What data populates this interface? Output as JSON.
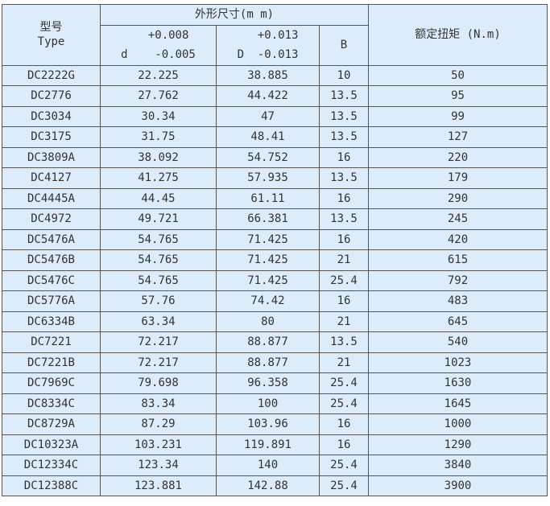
{
  "header": {
    "type_cn": "型号",
    "type_en": "Type",
    "dims": "外形尺寸(m m)",
    "d_upper": "+0.008",
    "d_label": "d",
    "d_lower": "-0.005",
    "D_upper": "+0.013",
    "D_label": "D",
    "D_lower": "-0.013",
    "b": "B",
    "torque": "额定扭矩 (N.m)"
  },
  "rows": [
    [
      "DC2222G",
      "22.225",
      "38.885",
      "10",
      "50"
    ],
    [
      "DC2776",
      "27.762",
      "44.422",
      "13.5",
      "95"
    ],
    [
      "DC3034",
      "30.34",
      "47",
      "13.5",
      "99"
    ],
    [
      "DC3175",
      "31.75",
      "48.41",
      "13.5",
      "127"
    ],
    [
      "DC3809A",
      "38.092",
      "54.752",
      "16",
      "220"
    ],
    [
      "DC4127",
      "41.275",
      "57.935",
      "13.5",
      "179"
    ],
    [
      "DC4445A",
      "44.45",
      "61.11",
      "16",
      "290"
    ],
    [
      "DC4972",
      "49.721",
      "66.381",
      "13.5",
      "245"
    ],
    [
      "DC5476A",
      "54.765",
      "71.425",
      "16",
      "420"
    ],
    [
      "DC5476B",
      "54.765",
      "71.425",
      "21",
      "615"
    ],
    [
      "DC5476C",
      "54.765",
      "71.425",
      "25.4",
      "792"
    ],
    [
      "DC5776A",
      "57.76",
      "74.42",
      "16",
      "483"
    ],
    [
      "DC6334B",
      "63.34",
      "80",
      "21",
      "645"
    ],
    [
      "DC7221",
      "72.217",
      "88.877",
      "13.5",
      "540"
    ],
    [
      "DC7221B",
      "72.217",
      "88.877",
      "21",
      "1023"
    ],
    [
      "DC7969C",
      "79.698",
      "96.358",
      "25.4",
      "1630"
    ],
    [
      "DC8334C",
      "83.34",
      "100",
      "25.4",
      "1645"
    ],
    [
      "DC8729A",
      "87.29",
      "103.96",
      "16",
      "1000"
    ],
    [
      "DC10323A",
      "103.231",
      "119.891",
      "16",
      "1290"
    ],
    [
      "DC12334C",
      "123.34",
      "140",
      "25.4",
      "3840"
    ],
    [
      "DC12388C",
      "123.881",
      "142.88",
      "25.4",
      "3900"
    ]
  ]
}
